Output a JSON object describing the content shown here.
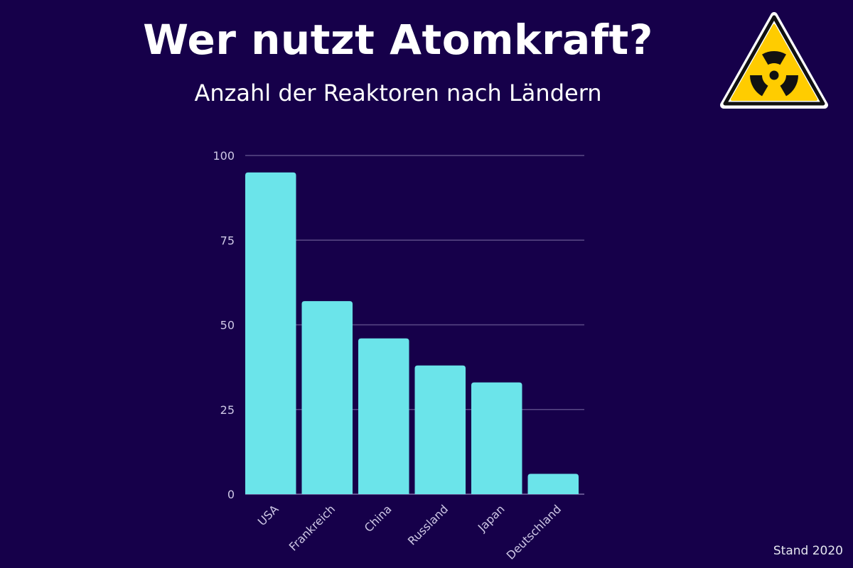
{
  "header": {
    "title": "Wer nutzt Atomkraft?",
    "subtitle": "Anzahl der Reaktoren nach Ländern"
  },
  "footer": {
    "note": "Stand 2020"
  },
  "icons": {
    "warning": "radiation-warning-icon"
  },
  "colors": {
    "background": "#16004a",
    "bar": "#6be4ea",
    "gridline": "#5a4a86",
    "tick_label": "#cfc8e6",
    "warning_fill": "#ffcc00"
  },
  "chart_data": {
    "type": "bar",
    "categories": [
      "USA",
      "Frankreich",
      "China",
      "Russland",
      "Japan",
      "Deutschland"
    ],
    "values": [
      95,
      57,
      46,
      38,
      33,
      6
    ],
    "ylim": [
      0,
      100
    ],
    "yticks": [
      0,
      25,
      50,
      75,
      100
    ],
    "grid": true
  }
}
